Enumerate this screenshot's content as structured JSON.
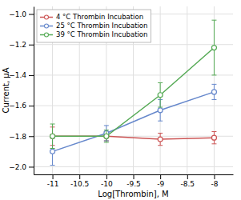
{
  "chart_data": {
    "type": "line",
    "x": [
      -11,
      -10,
      -9,
      -8
    ],
    "series": [
      {
        "name": "4 °C Thrombin Incubation",
        "color": "#cc5555",
        "marker": "circle",
        "values": [
          -1.8,
          -1.8,
          -1.82,
          -1.81
        ],
        "errors": [
          0.06,
          0.03,
          0.04,
          0.04
        ]
      },
      {
        "name": "25 °C Thrombin Incubation",
        "color": "#6688cc",
        "marker": "circle",
        "values": [
          -1.9,
          -1.78,
          -1.63,
          -1.51
        ],
        "errors": [
          0.09,
          0.05,
          0.07,
          0.05
        ]
      },
      {
        "name": "39 °C Thrombin Incubation",
        "color": "#55aa55",
        "marker": "circle",
        "values": [
          -1.8,
          -1.8,
          -1.53,
          -1.22
        ],
        "errors": [
          0.08,
          0.04,
          0.08,
          0.18
        ]
      }
    ],
    "xlabel": "Log[Thrombin], M",
    "ylabel": "Current, μA",
    "xlim": [
      -11.35,
      -7.65
    ],
    "ylim": [
      -2.05,
      -0.95
    ],
    "xticks": [
      -11,
      -10.5,
      -10,
      -9.5,
      -9,
      -8.5,
      -8
    ],
    "yticks": [
      {
        "value": -2.0,
        "label": "−2.0"
      },
      {
        "value": -1.8,
        "label": "−1.8"
      },
      {
        "value": -1.6,
        "label": "−1.6"
      },
      {
        "value": -1.4,
        "label": "−1.4"
      },
      {
        "value": -1.2,
        "label": "−1.2"
      },
      {
        "value": -1.0,
        "label": "−1.0"
      }
    ],
    "grid": true,
    "legend": "upper left"
  }
}
